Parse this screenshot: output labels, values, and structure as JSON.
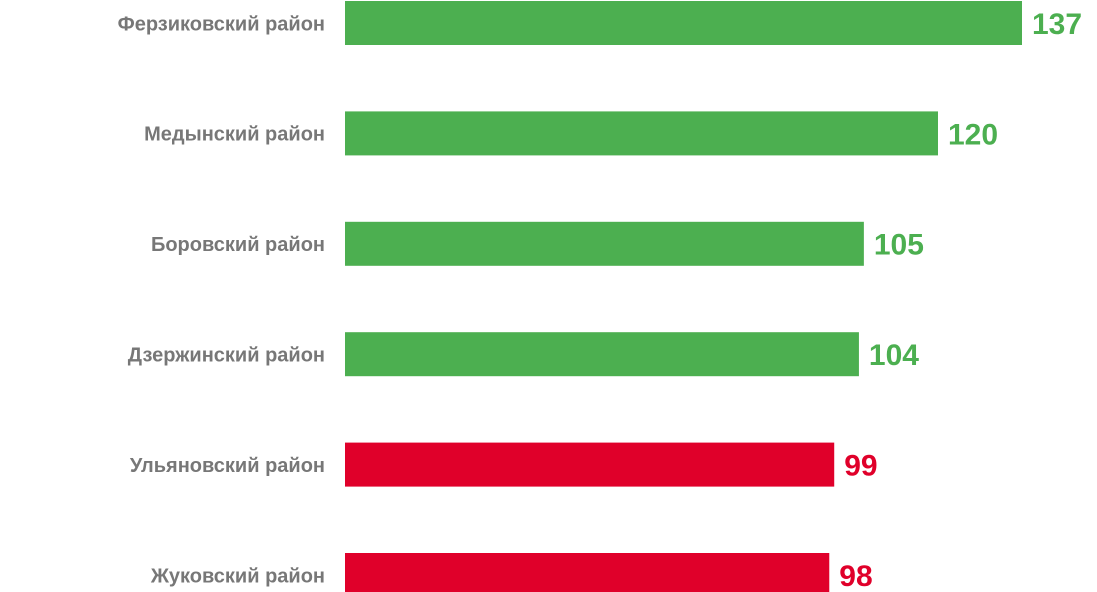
{
  "chart_data": {
    "type": "bar",
    "orientation": "horizontal",
    "categories": [
      "Ферзиковский район",
      "Медынский район",
      "Боровский район",
      "Дзержинский район",
      "Ульяновский район",
      "Жуковский район"
    ],
    "values": [
      137,
      120,
      105,
      104,
      99,
      98
    ],
    "colors": [
      "#4caf50",
      "#4caf50",
      "#4caf50",
      "#4caf50",
      "#e0002a",
      "#e0002a"
    ]
  }
}
